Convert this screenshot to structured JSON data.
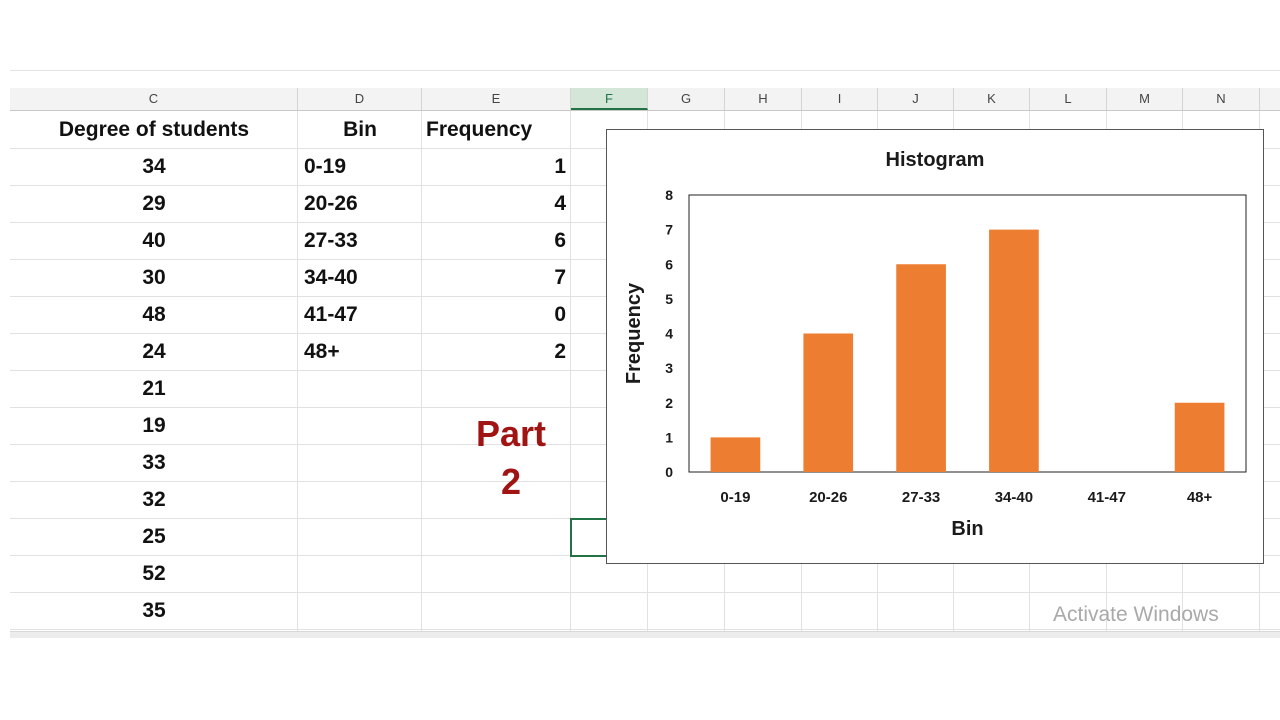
{
  "sheet": {
    "columns": [
      "C",
      "D",
      "E",
      "F",
      "G",
      "H",
      "I",
      "J",
      "K",
      "L",
      "M",
      "N"
    ],
    "selected_column": "F",
    "headers": {
      "degree": "Degree of students",
      "bin": "Bin",
      "frequency": "Frequency"
    },
    "degrees": [
      "34",
      "29",
      "40",
      "30",
      "48",
      "24",
      "21",
      "19",
      "33",
      "32",
      "25",
      "52",
      "35"
    ],
    "bins": [
      "0-19",
      "20-26",
      "27-33",
      "34-40",
      "41-47",
      "48+"
    ],
    "frequencies": [
      "1",
      "4",
      "6",
      "7",
      "0",
      "2"
    ]
  },
  "annotation": {
    "line1": "Part",
    "line2": "2"
  },
  "watermark": "Activate Windows",
  "colors": {
    "bar": "#ed7d31",
    "part_label": "#a11414",
    "selection": "#217346"
  },
  "chart_data": {
    "type": "bar",
    "title": "Histogram",
    "xlabel": "Bin",
    "ylabel": "Frequency",
    "categories": [
      "0-19",
      "20-26",
      "27-33",
      "34-40",
      "41-47",
      "48+"
    ],
    "values": [
      1,
      4,
      6,
      7,
      0,
      2
    ],
    "ylim": [
      0,
      8
    ],
    "yticks": [
      0,
      1,
      2,
      3,
      4,
      5,
      6,
      7,
      8
    ],
    "grid": false,
    "legend": "none"
  }
}
